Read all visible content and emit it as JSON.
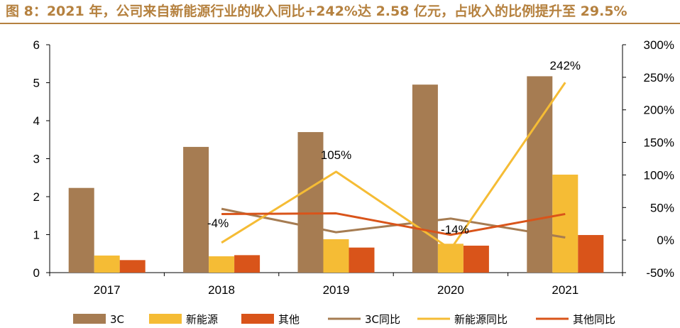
{
  "title": "图 8：2021 年，公司来自新能源行业的收入同比+242%达 2.58 亿元，占收入的比例提升至 29.5%",
  "chart_data": {
    "type": "bar",
    "categories": [
      "2017",
      "2018",
      "2019",
      "2020",
      "2021"
    ],
    "y_left": {
      "min": 0,
      "max": 6,
      "ticks": [
        "0",
        "1",
        "2",
        "3",
        "4",
        "5",
        "6"
      ]
    },
    "y_right": {
      "min": -50,
      "max": 300,
      "ticks": [
        "-50%",
        "0%",
        "50%",
        "100%",
        "150%",
        "200%",
        "250%",
        "300%"
      ]
    },
    "bar_series": [
      {
        "name": "3C",
        "color": "#a67c52",
        "values": [
          2.23,
          3.31,
          3.7,
          4.95,
          5.17
        ]
      },
      {
        "name": "新能源",
        "color": "#f5bc35",
        "values": [
          0.45,
          0.43,
          0.88,
          0.76,
          2.58
        ]
      },
      {
        "name": "其他",
        "color": "#d9541a",
        "values": [
          0.33,
          0.46,
          0.66,
          0.71,
          0.99
        ]
      }
    ],
    "line_series": [
      {
        "name": "3C同比",
        "color": "#a67c52",
        "values": [
          null,
          48,
          12,
          33,
          4
        ]
      },
      {
        "name": "新能源同比",
        "color": "#f5bc35",
        "values": [
          null,
          -4,
          105,
          -14,
          242
        ]
      },
      {
        "name": "其他同比",
        "color": "#d9541a",
        "values": [
          null,
          40,
          41,
          8,
          40
        ]
      }
    ],
    "data_labels": [
      {
        "series": "新能源同比",
        "index": 1,
        "text": "-4%"
      },
      {
        "series": "新能源同比",
        "index": 2,
        "text": "105%"
      },
      {
        "series": "新能源同比",
        "index": 3,
        "text": "-14%"
      },
      {
        "series": "新能源同比",
        "index": 4,
        "text": "242%"
      }
    ],
    "legend_position": "bottom"
  }
}
